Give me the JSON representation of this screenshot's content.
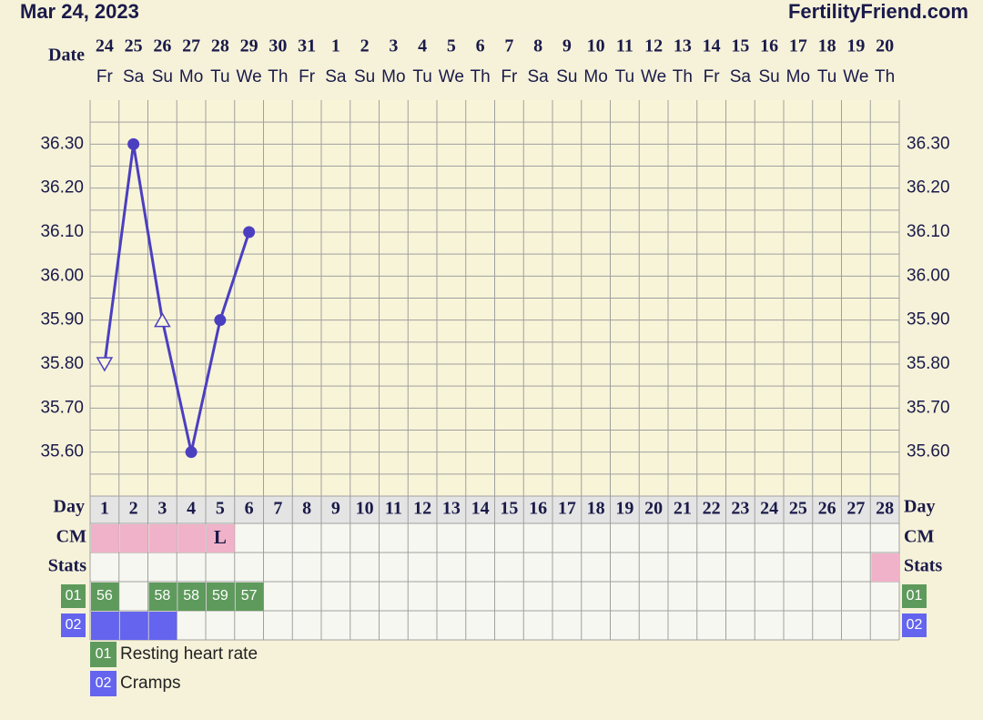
{
  "header": {
    "date": "Mar 24, 2023",
    "site": "FertilityFriend.com"
  },
  "chart_data": {
    "type": "line",
    "date_label": "Date",
    "dates": [
      "24",
      "25",
      "26",
      "27",
      "28",
      "29",
      "30",
      "31",
      "1",
      "2",
      "3",
      "4",
      "5",
      "6",
      "7",
      "8",
      "9",
      "10",
      "11",
      "12",
      "13",
      "14",
      "15",
      "16",
      "17",
      "18",
      "19",
      "20"
    ],
    "weekdays": [
      "Fr",
      "Sa",
      "Su",
      "Mo",
      "Tu",
      "We",
      "Th",
      "Fr",
      "Sa",
      "Su",
      "Mo",
      "Tu",
      "We",
      "Th",
      "Fr",
      "Sa",
      "Su",
      "Mo",
      "Tu",
      "We",
      "Th",
      "Fr",
      "Sa",
      "Su",
      "Mo",
      "Tu",
      "We",
      "Th"
    ],
    "x_label": "Day",
    "x": [
      1,
      2,
      3,
      4,
      5,
      6,
      7,
      8,
      9,
      10,
      11,
      12,
      13,
      14,
      15,
      16,
      17,
      18,
      19,
      20,
      21,
      22,
      23,
      24,
      25,
      26,
      27,
      28
    ],
    "values": [
      35.8,
      36.3,
      35.9,
      35.6,
      35.9,
      36.1,
      null,
      null,
      null,
      null,
      null,
      null,
      null,
      null,
      null,
      null,
      null,
      null,
      null,
      null,
      null,
      null,
      null,
      null,
      null,
      null,
      null,
      null
    ],
    "markers": [
      "triangle-down",
      "circle",
      "triangle-up",
      "circle",
      "circle",
      "circle",
      null,
      null,
      null,
      null,
      null,
      null,
      null,
      null,
      null,
      null,
      null,
      null,
      null,
      null,
      null,
      null,
      null,
      null,
      null,
      null,
      null,
      null
    ],
    "color": "#4b3fc0",
    "ylim": [
      35.5,
      36.4
    ],
    "yticks": [
      {
        "value": 35.6,
        "label": "35.60"
      },
      {
        "value": 35.7,
        "label": "35.70"
      },
      {
        "value": 35.8,
        "label": "35.80"
      },
      {
        "value": 35.9,
        "label": "35.90"
      },
      {
        "value": 36.0,
        "label": "36.00"
      },
      {
        "value": 36.1,
        "label": "36.10"
      },
      {
        "value": 36.2,
        "label": "36.20"
      },
      {
        "value": 36.3,
        "label": "36.30"
      }
    ],
    "grid": true,
    "cm": {
      "label": "CM",
      "color": "#f0b2c8",
      "marked_days": [
        1,
        2,
        3,
        4,
        5
      ],
      "entries": [
        {
          "day": 5,
          "text": "L"
        }
      ]
    },
    "stats": {
      "label": "Stats",
      "color": "#f0b2c8",
      "marked_days": [
        28
      ]
    },
    "custom_rows": [
      {
        "id": "01",
        "name": "Resting heart rate",
        "color": "#5e9a5c",
        "values": [
          56,
          null,
          58,
          58,
          59,
          57,
          null,
          null,
          null,
          null,
          null,
          null,
          null,
          null,
          null,
          null,
          null,
          null,
          null,
          null,
          null,
          null,
          null,
          null,
          null,
          null,
          null,
          null
        ]
      },
      {
        "id": "02",
        "name": "Cramps",
        "color": "#6464ee",
        "marked_days": [
          1,
          2,
          3
        ]
      }
    ]
  }
}
